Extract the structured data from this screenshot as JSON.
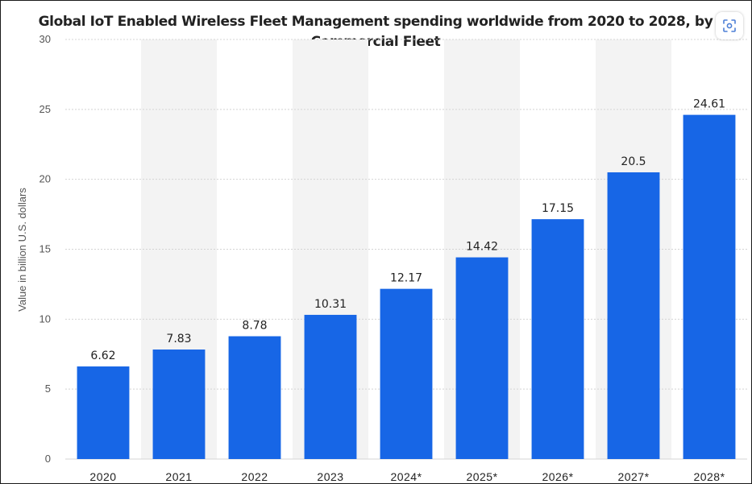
{
  "chart_data": {
    "type": "bar",
    "title": "Global IoT Enabled Wireless Fleet Management spending worldwide from 2020 to 2028, by Commercial Fleet",
    "xlabel": "",
    "ylabel": "Value in billion U.S. dollars",
    "categories": [
      "2020",
      "2021",
      "2022",
      "2023",
      "2024*",
      "2025*",
      "2026*",
      "2027*",
      "2028*"
    ],
    "values": [
      6.62,
      7.83,
      8.78,
      10.31,
      12.17,
      14.42,
      17.15,
      20.5,
      24.61
    ],
    "data_labels": [
      "6.62",
      "7.83",
      "8.78",
      "10.31",
      "12.17",
      "14.42",
      "17.15",
      "20.5",
      "24.61"
    ],
    "ylim": [
      0,
      30
    ],
    "yticks": [
      0,
      5,
      10,
      15,
      20,
      25,
      30
    ],
    "grid": true,
    "bar_color": "#1766e6",
    "band_color": "#f3f3f3",
    "grid_color": "#d4d4d4"
  },
  "toolbar": {
    "scan_icon": "scan-icon"
  }
}
